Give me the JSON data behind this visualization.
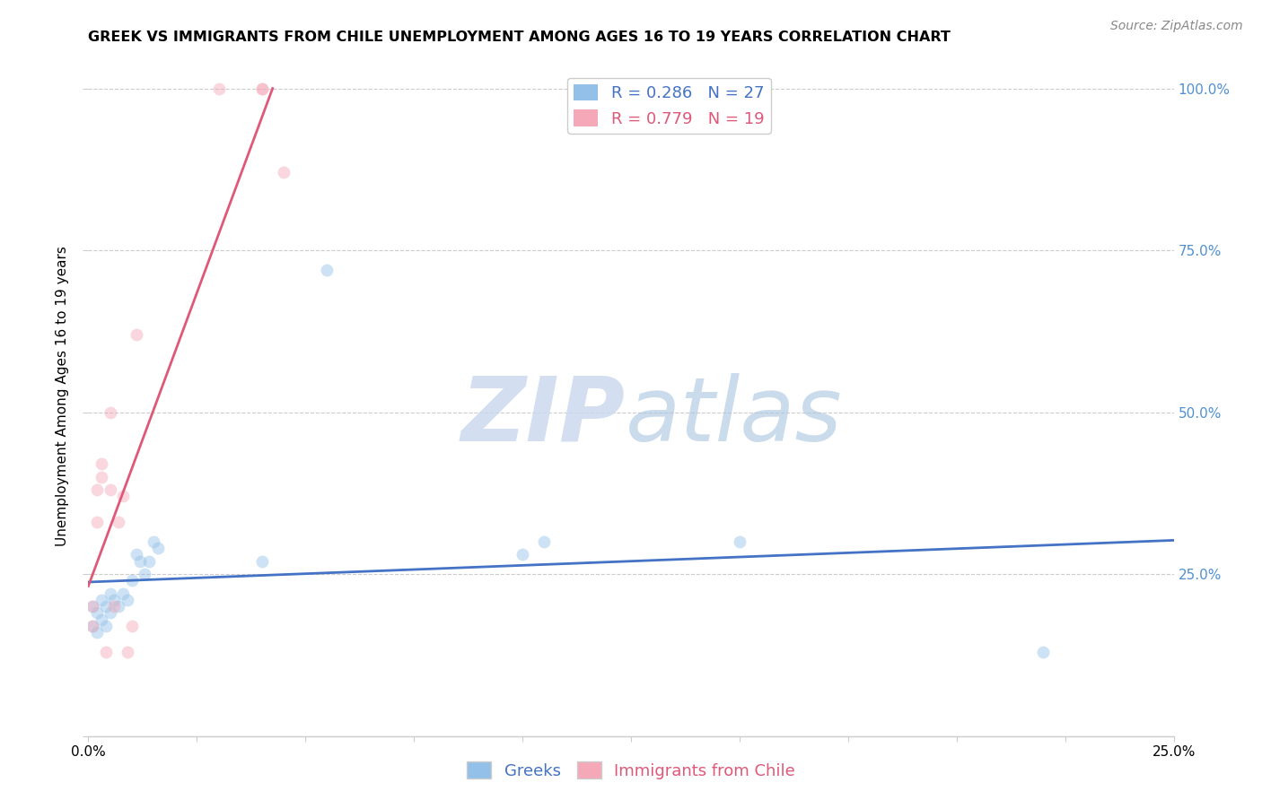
{
  "title": "GREEK VS IMMIGRANTS FROM CHILE UNEMPLOYMENT AMONG AGES 16 TO 19 YEARS CORRELATION CHART",
  "source": "Source: ZipAtlas.com",
  "ylabel": "Unemployment Among Ages 16 to 19 years",
  "xlim": [
    0.0,
    0.25
  ],
  "ylim": [
    0.0,
    1.05
  ],
  "greek_x": [
    0.001,
    0.001,
    0.002,
    0.002,
    0.003,
    0.003,
    0.004,
    0.004,
    0.005,
    0.005,
    0.006,
    0.007,
    0.008,
    0.009,
    0.01,
    0.011,
    0.012,
    0.013,
    0.014,
    0.015,
    0.016,
    0.04,
    0.055,
    0.1,
    0.105,
    0.15,
    0.22
  ],
  "greek_y": [
    0.2,
    0.17,
    0.19,
    0.16,
    0.21,
    0.18,
    0.2,
    0.17,
    0.22,
    0.19,
    0.21,
    0.2,
    0.22,
    0.21,
    0.24,
    0.28,
    0.27,
    0.25,
    0.27,
    0.3,
    0.29,
    0.27,
    0.72,
    0.28,
    0.3,
    0.3,
    0.13
  ],
  "chile_x": [
    0.001,
    0.001,
    0.002,
    0.002,
    0.003,
    0.003,
    0.004,
    0.005,
    0.005,
    0.006,
    0.007,
    0.008,
    0.009,
    0.01,
    0.011,
    0.03,
    0.04,
    0.04,
    0.045
  ],
  "chile_y": [
    0.2,
    0.17,
    0.38,
    0.33,
    0.4,
    0.42,
    0.13,
    0.38,
    0.5,
    0.2,
    0.33,
    0.37,
    0.13,
    0.17,
    0.62,
    1.0,
    1.0,
    1.0,
    0.87
  ],
  "greek_color": "#92C0E8",
  "chile_color": "#F4A8B8",
  "greek_line_color": "#4472C4",
  "chile_line_color": "#E05878",
  "R_greek": 0.286,
  "N_greek": 27,
  "R_chile": 0.779,
  "N_chile": 19,
  "legend_label_greek": "Greeks",
  "legend_label_chile": "Immigrants from Chile",
  "title_fontsize": 11.5,
  "axis_label_fontsize": 11,
  "tick_fontsize": 11,
  "legend_fontsize": 13,
  "source_fontsize": 10,
  "marker_size": 100,
  "marker_alpha": 0.45,
  "grid_color": "#CCCCCC",
  "background_color": "#FFFFFF",
  "right_ytick_color": "#5090D0",
  "watermark_zip_color": "#C8D8EE",
  "watermark_atlas_color": "#A8C4E0"
}
